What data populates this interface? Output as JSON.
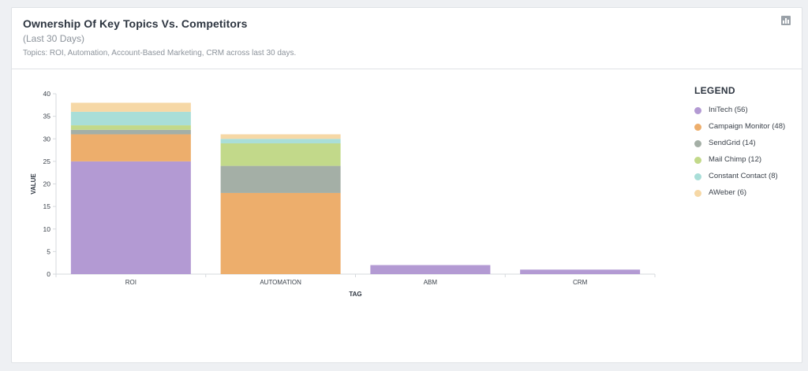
{
  "card": {
    "title": "Ownership Of Key Topics Vs. Competitors",
    "subtitle": "(Last 30 Days)",
    "description": "Topics: ROI, Automation, Account-Based Marketing, CRM across last 30 days.",
    "icon": "bar-chart-icon"
  },
  "legend": {
    "title": "LEGEND",
    "items": [
      {
        "label": "IniTech (56)",
        "color": "#b39ad3"
      },
      {
        "label": "Campaign Monitor (48)",
        "color": "#edae6c"
      },
      {
        "label": "SendGrid (14)",
        "color": "#a4afa6"
      },
      {
        "label": "Mail Chimp (12)",
        "color": "#c2d98a"
      },
      {
        "label": "Constant Contact (8)",
        "color": "#a9ded8"
      },
      {
        "label": "AWeber (6)",
        "color": "#f6d8a6"
      }
    ]
  },
  "chart_data": {
    "type": "bar",
    "stacked": true,
    "categories": [
      "ROI",
      "AUTOMATION",
      "ABM",
      "CRM"
    ],
    "series": [
      {
        "name": "IniTech (56)",
        "values": [
          25,
          0,
          2,
          1
        ]
      },
      {
        "name": "Campaign Monitor (48)",
        "values": [
          6,
          18,
          0,
          0
        ]
      },
      {
        "name": "SendGrid (14)",
        "values": [
          1,
          6,
          0,
          0
        ]
      },
      {
        "name": "Mail Chimp (12)",
        "values": [
          1,
          5,
          0,
          0
        ]
      },
      {
        "name": "Constant Contact (8)",
        "values": [
          3,
          1,
          0,
          0
        ]
      },
      {
        "name": "AWeber (6)",
        "values": [
          2,
          1,
          0,
          0
        ]
      }
    ],
    "xlabel": "TAG",
    "ylabel": "VALUE",
    "ylim": [
      0,
      40
    ],
    "yticks": [
      "0",
      "5",
      "10",
      "15",
      "20",
      "25",
      "30",
      "35",
      "40"
    ],
    "grid": false,
    "legend_position": "right"
  }
}
